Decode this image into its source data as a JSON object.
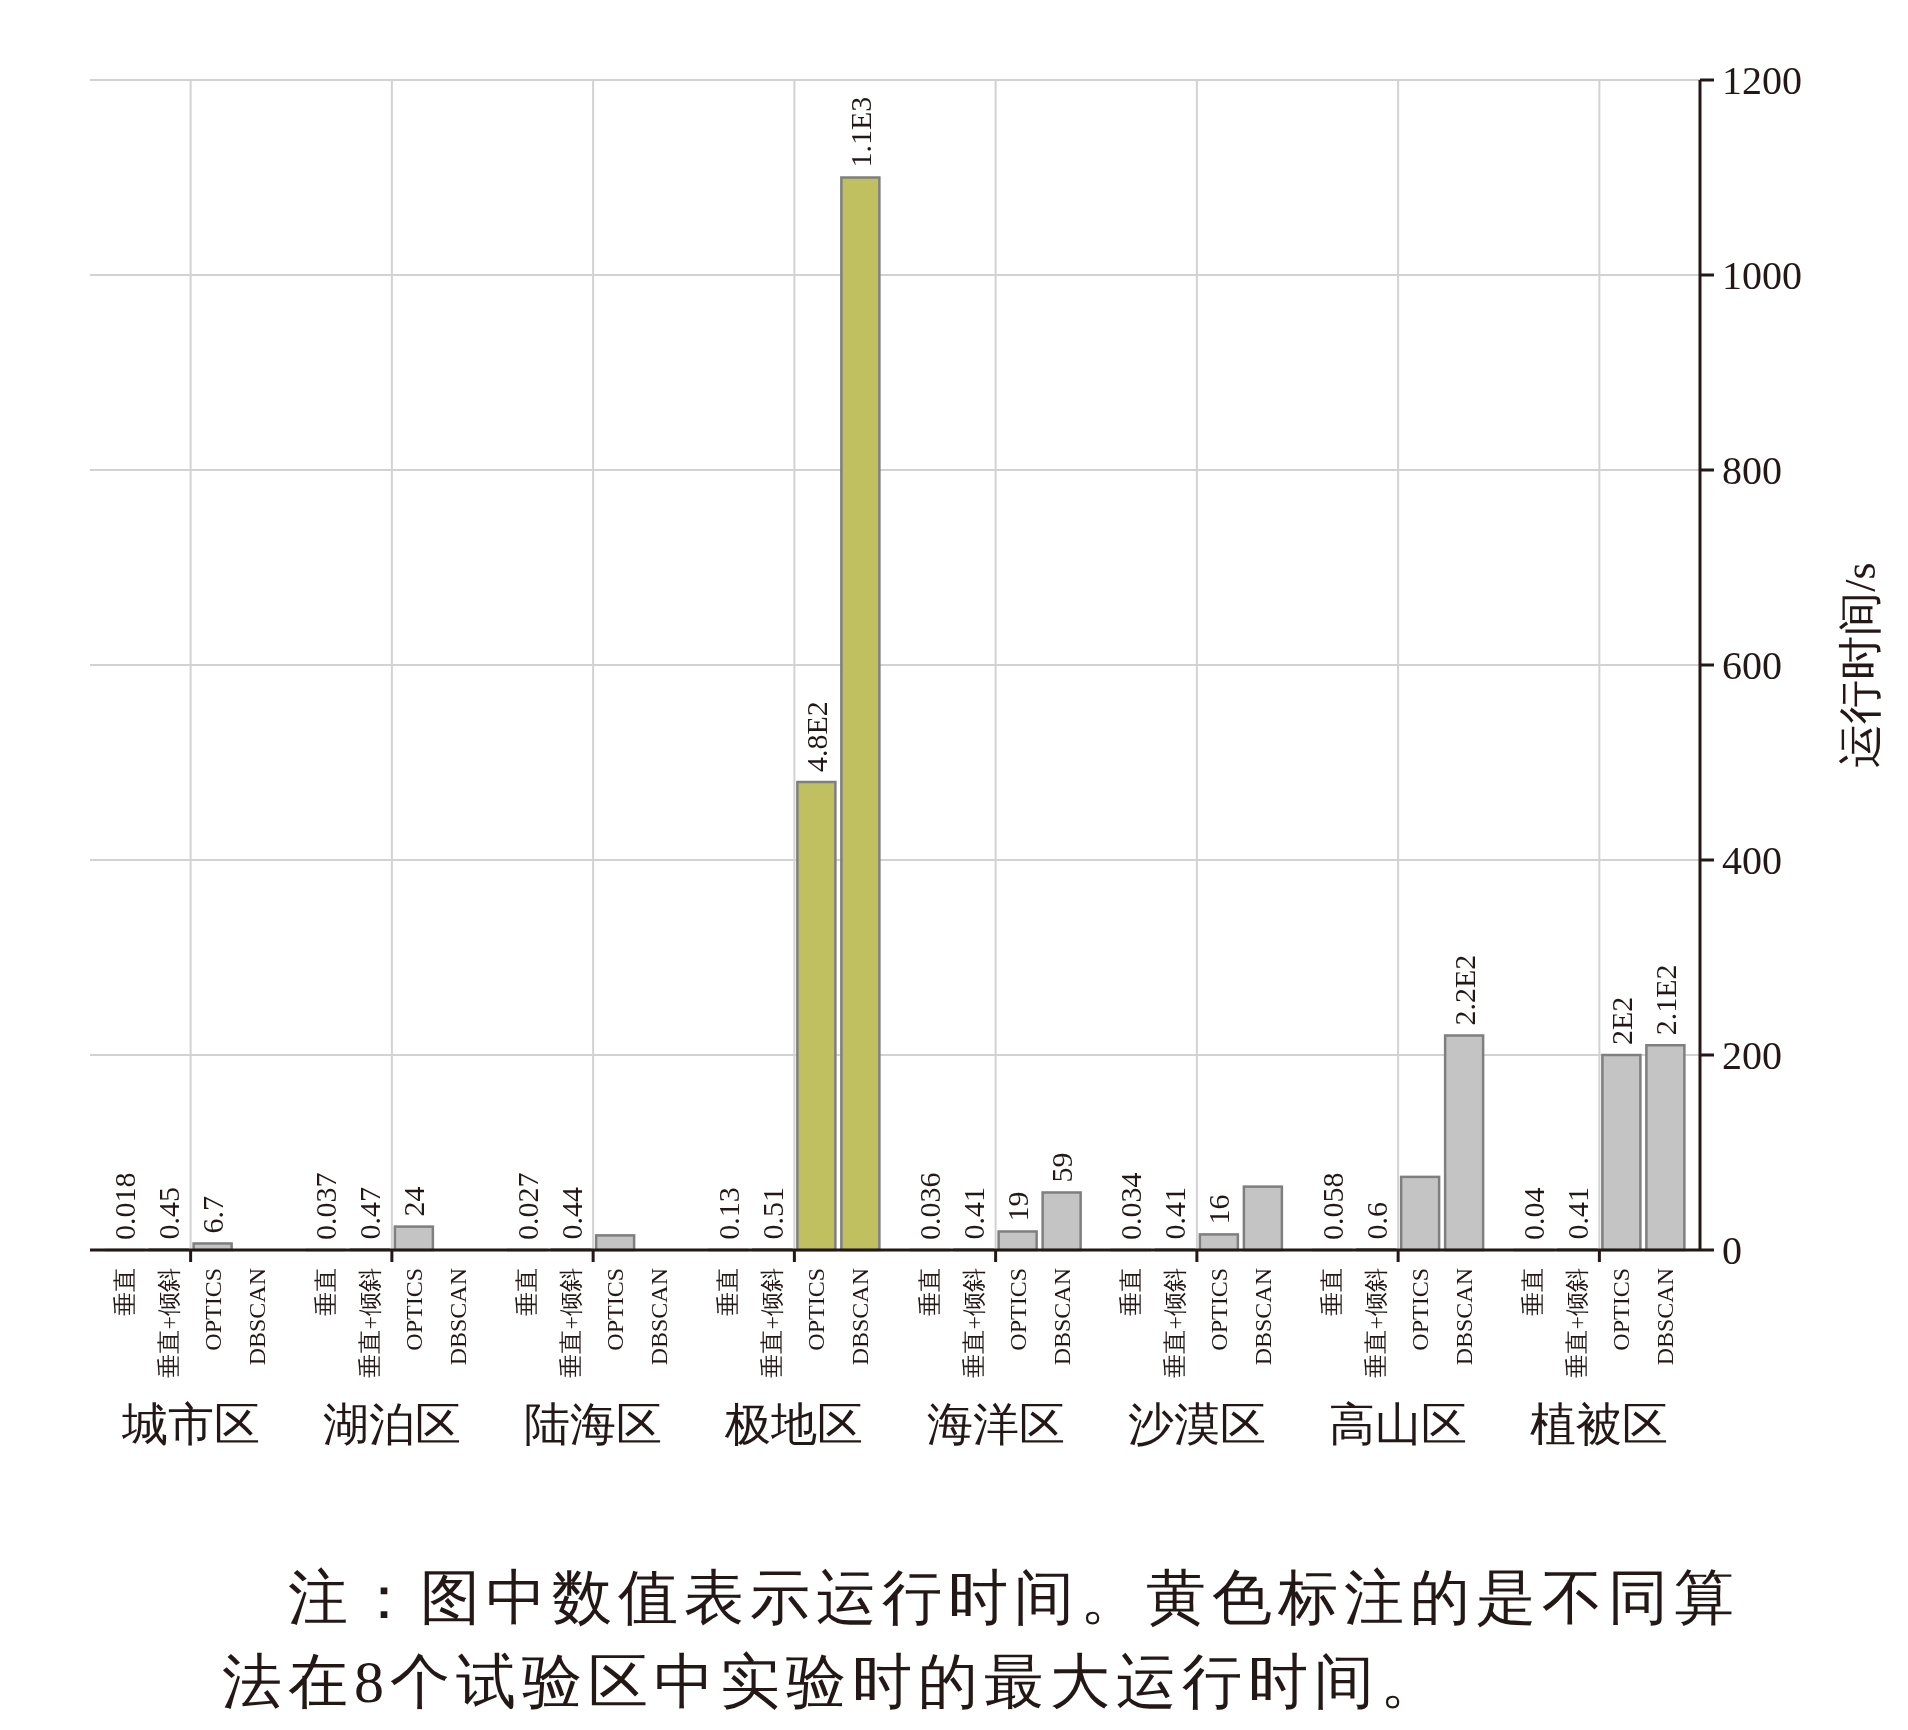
{
  "chart_data": {
    "type": "bar",
    "ylabel": "运行时间/s",
    "categories": [
      "城市区",
      "湖泊区",
      "陆海区",
      "极地区",
      "海洋区",
      "沙漠区",
      "高山区",
      "植被区"
    ],
    "series": [
      {
        "name": "垂直",
        "color": "#c4c4c4",
        "colors": [
          null,
          null,
          null,
          "#c0c060",
          null,
          null,
          null,
          null
        ],
        "values": [
          0.018,
          0.037,
          0.027,
          0.13,
          0.036,
          0.034,
          0.058,
          0.04
        ],
        "value_labels": [
          "0.018",
          "0.037",
          "0.027",
          "0.13",
          "0.036",
          "0.034",
          "0.058",
          "0.04"
        ]
      },
      {
        "name": "垂直+倾斜",
        "color": "#c4c4c4",
        "colors": [
          null,
          null,
          null,
          null,
          null,
          null,
          "#c0c060",
          null
        ],
        "values": [
          0.45,
          0.47,
          0.44,
          0.51,
          0.41,
          0.41,
          0.6,
          0.41
        ],
        "value_labels": [
          "0.45",
          "0.47",
          "0.44",
          "0.51",
          "0.41",
          "0.41",
          "0.6",
          "0.41"
        ]
      },
      {
        "name": "OPTICS",
        "color": "#c4c4c4",
        "colors": [
          null,
          null,
          null,
          "#c0c060",
          null,
          null,
          null,
          null
        ],
        "values": [
          6.7,
          24,
          15,
          480,
          19,
          16,
          75,
          200
        ],
        "value_labels": [
          "6.7",
          "24",
          null,
          "4.8E2",
          "19",
          "16",
          null,
          "2E2"
        ]
      },
      {
        "name": "DBSCAN",
        "color": "#c4c4c4",
        "colors": [
          null,
          null,
          null,
          "#c0c060",
          null,
          null,
          null,
          null
        ],
        "values": [
          null,
          null,
          null,
          1100,
          59,
          65,
          220,
          210
        ],
        "value_labels": [
          null,
          null,
          null,
          "1.1E3",
          "59",
          null,
          "2.2E2",
          "2.1E2"
        ]
      }
    ],
    "ylim": [
      0,
      1200
    ],
    "yticks": [
      0,
      200,
      400,
      600,
      800,
      1000,
      1200
    ],
    "grid": true,
    "annotations": [
      "注：图中数值表示运行时间。黄色标注的是不同算法在8个试验区中实验时的最大运行时间。"
    ]
  }
}
